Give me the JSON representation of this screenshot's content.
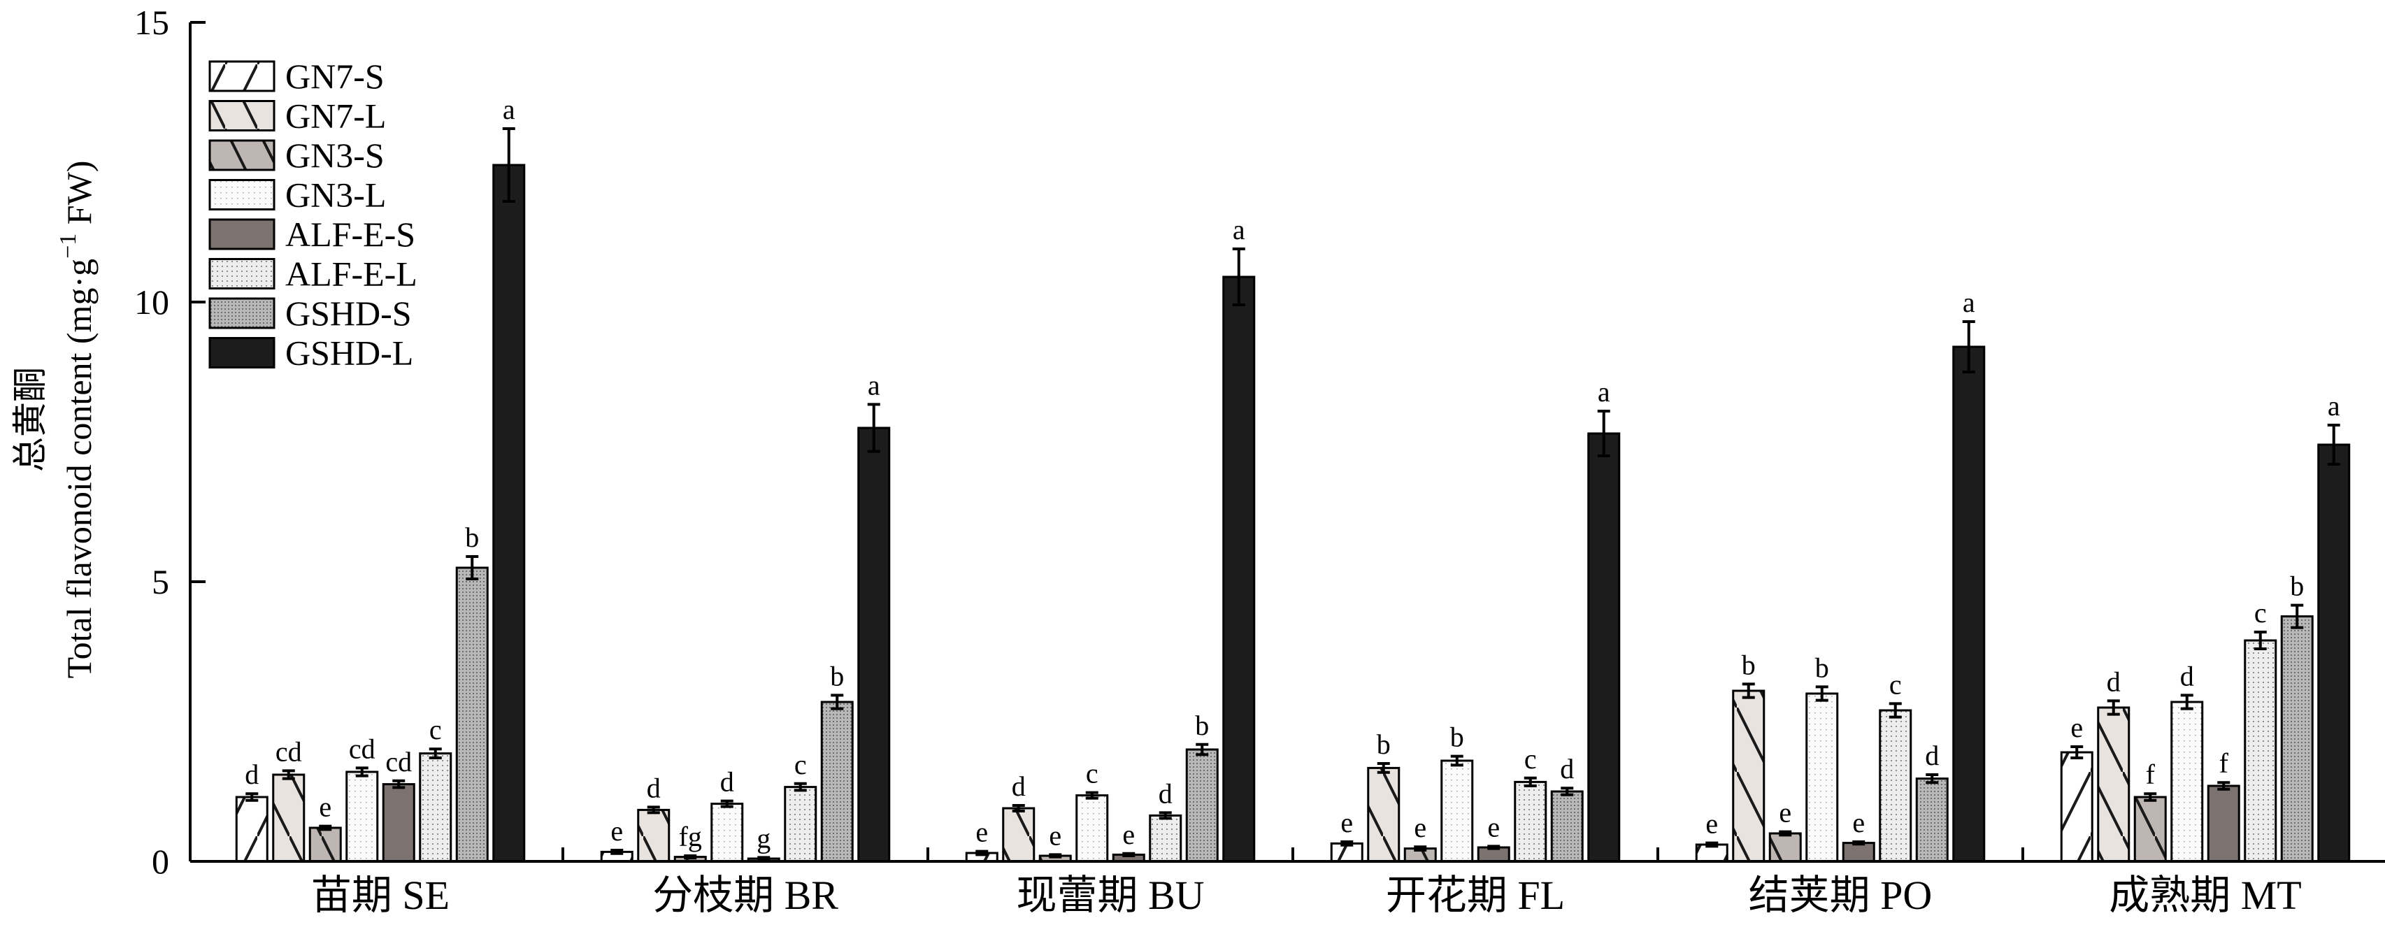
{
  "chart_data": {
    "type": "bar",
    "ylabel_cn": "总黄酮",
    "ylabel_en": "Total flavonoid content (mg·g",
    "ylabel_sup": "−1",
    "ylabel_tail": " FW)",
    "ylim": [
      0,
      15
    ],
    "yticks": [
      "0",
      "5",
      "10",
      "15"
    ],
    "grid": false,
    "legend_position": "top-left",
    "categories": [
      "苗期 SE",
      "分枝期 BR",
      "现蕾期 BU",
      "开花期 FL",
      "结荚期 PO",
      "成熟期 MT"
    ],
    "series": [
      {
        "name": "GN7-S",
        "pattern": "diag-up",
        "values": [
          1.15,
          0.17,
          0.15,
          0.32,
          0.3,
          1.95
        ],
        "errors": [
          0.06,
          0.03,
          0.03,
          0.03,
          0.03,
          0.1
        ],
        "letters": [
          "d",
          "e",
          "e",
          "e",
          "e",
          "e"
        ]
      },
      {
        "name": "GN7-L",
        "pattern": "diag-down",
        "values": [
          1.55,
          0.92,
          0.95,
          1.67,
          3.05,
          2.75
        ],
        "errors": [
          0.07,
          0.05,
          0.05,
          0.08,
          0.12,
          0.12
        ],
        "letters": [
          "cd",
          "d",
          "d",
          "b",
          "b",
          "d"
        ]
      },
      {
        "name": "GN3-S",
        "pattern": "diag-down-gray",
        "values": [
          0.6,
          0.08,
          0.1,
          0.23,
          0.5,
          1.15
        ],
        "errors": [
          0.03,
          0.02,
          0.02,
          0.03,
          0.03,
          0.06
        ],
        "letters": [
          "e",
          "fg",
          "e",
          "e",
          "e",
          "f"
        ]
      },
      {
        "name": "GN3-L",
        "pattern": "dots-white",
        "values": [
          1.6,
          1.03,
          1.18,
          1.8,
          3.0,
          2.85
        ],
        "errors": [
          0.07,
          0.05,
          0.05,
          0.08,
          0.12,
          0.12
        ],
        "letters": [
          "cd",
          "d",
          "c",
          "b",
          "b",
          "d"
        ]
      },
      {
        "name": "ALF-E-S",
        "pattern": "solid-gray",
        "values": [
          1.38,
          0.05,
          0.12,
          0.25,
          0.33,
          1.35
        ],
        "errors": [
          0.06,
          0.02,
          0.02,
          0.02,
          0.02,
          0.06
        ],
        "letters": [
          "cd",
          "g",
          "e",
          "e",
          "e",
          "f"
        ]
      },
      {
        "name": "ALF-E-L",
        "pattern": "dots-light",
        "values": [
          1.93,
          1.33,
          0.82,
          1.42,
          2.7,
          3.95
        ],
        "errors": [
          0.08,
          0.06,
          0.05,
          0.07,
          0.12,
          0.15
        ],
        "letters": [
          "c",
          "c",
          "d",
          "c",
          "c",
          "c"
        ]
      },
      {
        "name": "GSHD-S",
        "pattern": "dots-dense",
        "values": [
          5.25,
          2.85,
          2.0,
          1.25,
          1.48,
          4.38
        ],
        "errors": [
          0.2,
          0.12,
          0.09,
          0.06,
          0.07,
          0.2
        ],
        "letters": [
          "b",
          "b",
          "b",
          "d",
          "d",
          "b"
        ]
      },
      {
        "name": "GSHD-L",
        "pattern": "solid-black",
        "values": [
          12.45,
          7.75,
          10.45,
          7.65,
          9.2,
          7.45
        ],
        "errors": [
          0.65,
          0.42,
          0.5,
          0.4,
          0.45,
          0.35
        ],
        "letters": [
          "a",
          "a",
          "a",
          "a",
          "a",
          "a"
        ]
      }
    ]
  }
}
